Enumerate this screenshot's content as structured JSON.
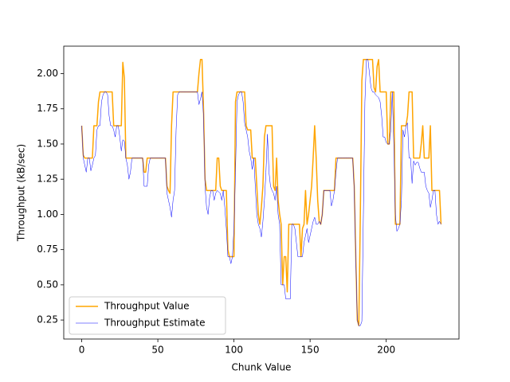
{
  "chart_data": {
    "type": "line",
    "xlabel": "Chunk Value",
    "ylabel": "Throughput (kB/sec)",
    "x": [
      0,
      1,
      2,
      3,
      4,
      5,
      6,
      7,
      8,
      9,
      10,
      11,
      12,
      13,
      14,
      15,
      16,
      17,
      18,
      19,
      20,
      21,
      22,
      23,
      24,
      25,
      26,
      27,
      28,
      29,
      30,
      31,
      32,
      33,
      34,
      35,
      36,
      37,
      38,
      39,
      40,
      41,
      42,
      43,
      44,
      45,
      46,
      47,
      48,
      49,
      50,
      51,
      52,
      53,
      54,
      55,
      56,
      57,
      58,
      59,
      60,
      61,
      62,
      63,
      64,
      65,
      66,
      67,
      68,
      69,
      70,
      71,
      72,
      73,
      74,
      75,
      76,
      77,
      78,
      79,
      80,
      81,
      82,
      83,
      84,
      85,
      86,
      87,
      88,
      89,
      90,
      91,
      92,
      93,
      94,
      95,
      96,
      97,
      98,
      99,
      100,
      101,
      102,
      103,
      104,
      105,
      106,
      107,
      108,
      109,
      110,
      111,
      112,
      113,
      114,
      115,
      116,
      117,
      118,
      119,
      120,
      121,
      122,
      123,
      124,
      125,
      126,
      127,
      128,
      129,
      130,
      131,
      132,
      133,
      134,
      135,
      136,
      137,
      138,
      139,
      140,
      141,
      142,
      143,
      144,
      145,
      146,
      147,
      148,
      149,
      150,
      151,
      152,
      153,
      154,
      155,
      156,
      157,
      158,
      159,
      160,
      161,
      162,
      163,
      164,
      165,
      166,
      167,
      168,
      169,
      170,
      171,
      172,
      173,
      174,
      175,
      176,
      177,
      178,
      179,
      180,
      181,
      182,
      183,
      184,
      185,
      186,
      187,
      188,
      189,
      190,
      191,
      192,
      193,
      194,
      195,
      196,
      197,
      198,
      199,
      200,
      201,
      202,
      203,
      204,
      205,
      206,
      207,
      208,
      209,
      210,
      211,
      212,
      213,
      214,
      215,
      216,
      217,
      218,
      219,
      220,
      221,
      222,
      223,
      224,
      225,
      226,
      227,
      228,
      229,
      230,
      231,
      232,
      233,
      234,
      235,
      236
    ],
    "series": [
      {
        "name": "Throughput Value",
        "color": "#ffa500",
        "linewidth": 1.5,
        "values": [
          1.63,
          1.42,
          1.4,
          1.4,
          1.4,
          1.4,
          1.4,
          1.4,
          1.63,
          1.63,
          1.63,
          1.8,
          1.87,
          1.87,
          1.87,
          1.87,
          1.87,
          1.87,
          1.87,
          1.87,
          1.87,
          1.63,
          1.63,
          1.63,
          1.63,
          1.63,
          1.63,
          2.08,
          1.97,
          1.4,
          1.4,
          1.4,
          1.4,
          1.4,
          1.4,
          1.4,
          1.4,
          1.4,
          1.4,
          1.4,
          1.4,
          1.3,
          1.3,
          1.4,
          1.4,
          1.4,
          1.4,
          1.4,
          1.4,
          1.4,
          1.4,
          1.4,
          1.4,
          1.4,
          1.4,
          1.4,
          1.2,
          1.17,
          1.15,
          1.63,
          1.87,
          1.87,
          1.87,
          1.87,
          1.87,
          1.87,
          1.87,
          1.87,
          1.87,
          1.87,
          1.87,
          1.87,
          1.87,
          1.87,
          1.87,
          1.87,
          1.87,
          2.0,
          2.1,
          2.1,
          1.75,
          1.25,
          1.17,
          1.17,
          1.17,
          1.17,
          1.17,
          1.17,
          1.17,
          1.4,
          1.4,
          1.2,
          1.17,
          1.17,
          1.17,
          1.17,
          0.75,
          0.7,
          0.7,
          0.7,
          0.7,
          1.8,
          1.87,
          1.87,
          1.87,
          1.87,
          1.87,
          1.87,
          1.63,
          1.6,
          1.6,
          1.6,
          1.4,
          1.4,
          1.4,
          1.2,
          1.0,
          0.93,
          1.05,
          1.2,
          1.55,
          1.63,
          1.63,
          1.63,
          1.63,
          1.63,
          1.2,
          1.17,
          1.4,
          1.1,
          1.0,
          0.93,
          0.5,
          0.7,
          0.7,
          0.45,
          0.93,
          0.93,
          0.93,
          0.93,
          0.93,
          0.93,
          0.93,
          0.93,
          0.7,
          0.9,
          0.93,
          1.17,
          0.93,
          1.0,
          1.1,
          1.2,
          1.4,
          1.63,
          1.4,
          1.1,
          0.95,
          0.93,
          1.0,
          1.17,
          1.17,
          1.17,
          1.17,
          1.17,
          1.17,
          1.17,
          1.17,
          1.4,
          1.4,
          1.4,
          1.4,
          1.4,
          1.4,
          1.4,
          1.4,
          1.4,
          1.4,
          1.4,
          1.4,
          1.2,
          0.7,
          0.25,
          0.21,
          1.0,
          1.95,
          2.1,
          2.1,
          2.1,
          2.1,
          2.1,
          2.1,
          2.1,
          1.9,
          1.87,
          2.05,
          2.1,
          1.87,
          1.87,
          1.87,
          1.87,
          1.87,
          1.5,
          1.5,
          1.87,
          1.87,
          1.87,
          0.93,
          0.93,
          0.93,
          0.93,
          1.63,
          1.63,
          1.63,
          1.63,
          1.7,
          1.87,
          1.87,
          1.87,
          1.4,
          1.4,
          1.4,
          1.4,
          1.4,
          1.5,
          1.63,
          1.4,
          1.4,
          1.4,
          1.4,
          1.63,
          1.17,
          1.17,
          1.17,
          1.17,
          1.17,
          1.17,
          0.93
        ]
      },
      {
        "name": "Throughput Estimate",
        "color": "#0000ff",
        "linewidth": 0.5,
        "values": [
          1.63,
          1.4,
          1.35,
          1.3,
          1.4,
          1.4,
          1.31,
          1.35,
          1.4,
          1.42,
          1.6,
          1.63,
          1.63,
          1.8,
          1.85,
          1.87,
          1.87,
          1.85,
          1.7,
          1.63,
          1.63,
          1.6,
          1.55,
          1.63,
          1.63,
          1.55,
          1.45,
          1.53,
          1.52,
          1.4,
          1.35,
          1.25,
          1.3,
          1.4,
          1.4,
          1.4,
          1.4,
          1.4,
          1.4,
          1.4,
          1.4,
          1.2,
          1.2,
          1.2,
          1.35,
          1.4,
          1.4,
          1.4,
          1.4,
          1.4,
          1.4,
          1.4,
          1.4,
          1.4,
          1.4,
          1.4,
          1.15,
          1.1,
          1.05,
          0.98,
          1.1,
          1.17,
          1.6,
          1.85,
          1.87,
          1.87,
          1.87,
          1.87,
          1.87,
          1.87,
          1.87,
          1.87,
          1.87,
          1.87,
          1.87,
          1.87,
          1.87,
          1.78,
          1.82,
          1.87,
          1.7,
          1.2,
          1.05,
          1.0,
          1.12,
          1.17,
          1.17,
          1.1,
          1.15,
          1.17,
          1.16,
          1.15,
          1.1,
          1.17,
          1.05,
          0.9,
          0.7,
          0.7,
          0.65,
          0.7,
          0.9,
          1.3,
          1.8,
          1.85,
          1.87,
          1.87,
          1.8,
          1.65,
          1.6,
          1.55,
          1.45,
          1.4,
          1.32,
          1.4,
          1.2,
          1.0,
          0.93,
          0.9,
          0.84,
          0.95,
          1.1,
          1.3,
          1.57,
          1.3,
          1.2,
          1.17,
          1.15,
          1.1,
          1.2,
          1.0,
          0.93,
          0.5,
          0.5,
          0.5,
          0.4,
          0.4,
          0.4,
          0.4,
          0.93,
          0.93,
          0.9,
          0.8,
          0.7,
          0.7,
          0.7,
          0.7,
          0.8,
          0.85,
          0.9,
          0.8,
          0.85,
          0.9,
          0.95,
          0.98,
          0.93,
          0.93,
          0.95,
          0.93,
          1.0,
          1.17,
          1.17,
          1.17,
          1.17,
          1.17,
          1.06,
          1.1,
          1.17,
          1.3,
          1.4,
          1.4,
          1.4,
          1.4,
          1.4,
          1.4,
          1.4,
          1.4,
          1.4,
          1.4,
          1.4,
          1.17,
          0.7,
          0.25,
          0.21,
          0.21,
          0.24,
          1.0,
          1.8,
          2.1,
          2.1,
          2.0,
          1.9,
          1.87,
          1.87,
          1.85,
          1.84,
          1.83,
          1.8,
          1.7,
          1.55,
          1.55,
          1.51,
          1.5,
          1.5,
          1.6,
          1.87,
          1.5,
          1.0,
          0.88,
          0.9,
          0.93,
          1.1,
          1.6,
          1.55,
          1.63,
          1.65,
          1.4,
          1.4,
          1.22,
          1.38,
          1.35,
          1.37,
          1.37,
          1.33,
          1.3,
          1.3,
          1.3,
          1.2,
          1.17,
          1.15,
          1.05,
          1.1,
          1.17,
          1.17,
          1.0,
          0.93,
          0.95,
          0.93
        ]
      }
    ],
    "xlim": [
      -11.8,
      247.8
    ],
    "xticks": [
      0,
      50,
      100,
      150,
      200
    ],
    "ylim": [
      0.115,
      2.195
    ],
    "yticks": [
      0.25,
      {
        "value": 0.5,
        "label": "0.50"
      },
      0.75,
      {
        "value": 1.0,
        "label": "1.00"
      },
      1.25,
      {
        "value": 1.5,
        "label": "1.50"
      },
      1.75,
      {
        "value": 2.0,
        "label": "2.00"
      }
    ],
    "legend": "lower left"
  }
}
